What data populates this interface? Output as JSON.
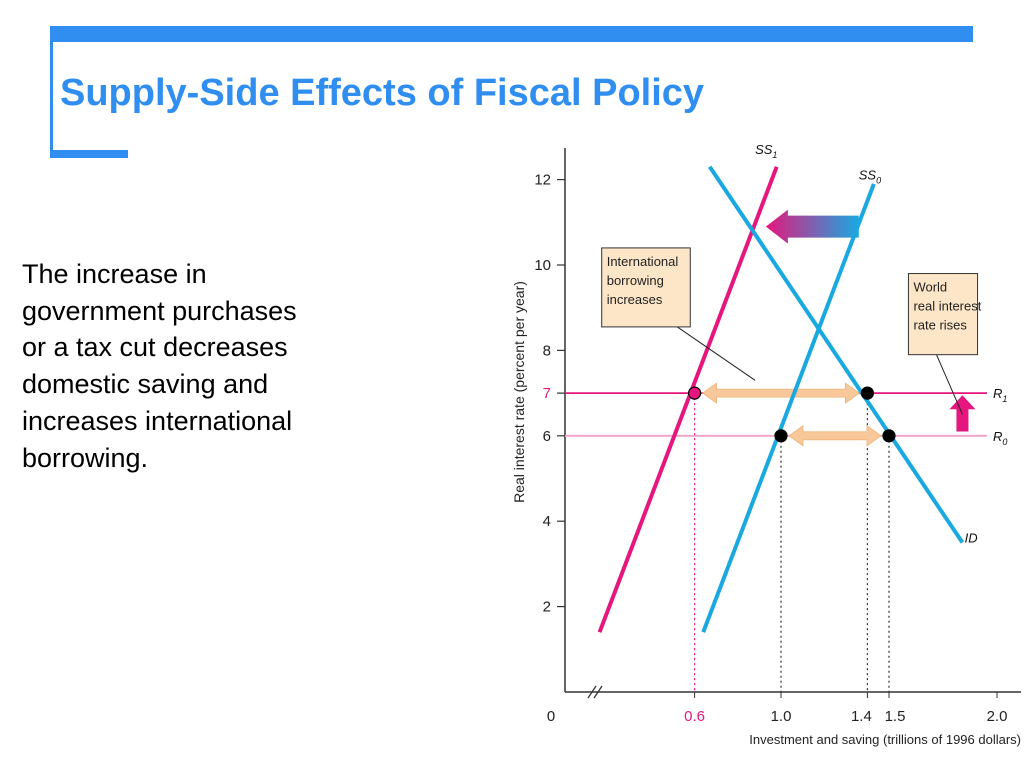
{
  "slide": {
    "title": "Supply-Side Effects of Fiscal Policy",
    "body": "The increase in government purchases or a tax cut decreases domestic saving and increases international borrowing.",
    "accent_color": "#2f8ef0"
  },
  "chart_data": {
    "type": "line",
    "title": "",
    "xlabel": "Investment and saving (trillions of 1996 dollars)",
    "ylabel": "Real interest rate (percent per year)",
    "xlim": [
      0,
      2.0
    ],
    "ylim": [
      0,
      12.5
    ],
    "x_axis_break": true,
    "x_ticks": [
      {
        "value": 0,
        "label": "0"
      },
      {
        "value": 0.6,
        "label": "0.6",
        "highlight": true
      },
      {
        "value": 1.0,
        "label": "1.0"
      },
      {
        "value": 1.4,
        "label": "1.4"
      },
      {
        "value": 1.5,
        "label": "1.5"
      },
      {
        "value": 2.0,
        "label": "2.0"
      }
    ],
    "y_ticks": [
      {
        "value": 2,
        "label": "2"
      },
      {
        "value": 4,
        "label": "4"
      },
      {
        "value": 6,
        "label": "6"
      },
      {
        "value": 7,
        "label": "7",
        "highlight": true
      },
      {
        "value": 8,
        "label": "8"
      },
      {
        "value": 10,
        "label": "10"
      },
      {
        "value": 12,
        "label": "12"
      }
    ],
    "series": [
      {
        "name": "SS",
        "sub": "1",
        "color": "#e5177e",
        "points": [
          [
            0.16,
            1.4
          ],
          [
            0.98,
            12.3
          ]
        ],
        "label_at": [
          0.88,
          12.6
        ]
      },
      {
        "name": "SS",
        "sub": "0",
        "color": "#19a9e0",
        "points": [
          [
            0.64,
            1.4
          ],
          [
            1.43,
            11.9
          ]
        ],
        "label_at": [
          1.36,
          12.0
        ]
      },
      {
        "name": "ID",
        "color": "#19a9e0",
        "points": [
          [
            0.67,
            12.3
          ],
          [
            1.84,
            3.5
          ]
        ],
        "label_at": [
          1.85,
          3.5
        ]
      }
    ],
    "reference_lines": [
      {
        "name": "R",
        "sub": "1",
        "y": 7,
        "color": "#e5177e",
        "stroke_width": 1.8
      },
      {
        "name": "R",
        "sub": "0",
        "y": 6,
        "color": "#f4a0c8",
        "stroke_width": 1.8
      }
    ],
    "points": [
      {
        "x": 0.6,
        "y": 7,
        "fill": "#e5177e"
      },
      {
        "x": 1.4,
        "y": 7,
        "fill": "#000000"
      },
      {
        "x": 1.0,
        "y": 6,
        "fill": "#000000"
      },
      {
        "x": 1.5,
        "y": 6,
        "fill": "#000000"
      }
    ],
    "drop_lines": [
      {
        "x": 0.6,
        "y": 7,
        "color": "#e5177e"
      },
      {
        "x": 1.0,
        "y": 6,
        "color": "#333333"
      },
      {
        "x": 1.4,
        "y": 7,
        "color": "#333333"
      },
      {
        "x": 1.5,
        "y": 6,
        "color": "#333333"
      }
    ],
    "gap_arrows": [
      {
        "from": 0.6,
        "to": 1.4,
        "y": 7,
        "color": "#f8c89a"
      },
      {
        "from": 1.0,
        "to": 1.5,
        "y": 6,
        "color": "#f8c89a"
      }
    ],
    "shift_arrow": {
      "from": 1.36,
      "to": 0.93,
      "y": 10.9,
      "color_head": "#e5177e",
      "color_tail": "#19a9e0"
    },
    "rise_arrow": {
      "x": 1.84,
      "from": 6.1,
      "to": 6.95,
      "color": "#e5177e"
    },
    "annotations": [
      {
        "lines": [
          "International",
          "borrowing",
          "increases"
        ],
        "box": [
          0.17,
          10.4,
          0.58,
          8.55
        ],
        "fill": "#fde6c8",
        "leader": [
          [
            0.52,
            8.55
          ],
          [
            0.88,
            7.3
          ]
        ]
      },
      {
        "lines": [
          "World",
          "real interest",
          "rate rises"
        ],
        "box": [
          1.59,
          9.8,
          1.91,
          7.9
        ],
        "fill": "#fde6c8",
        "leader": [
          [
            1.72,
            7.9
          ],
          [
            1.84,
            6.5
          ]
        ]
      }
    ]
  }
}
